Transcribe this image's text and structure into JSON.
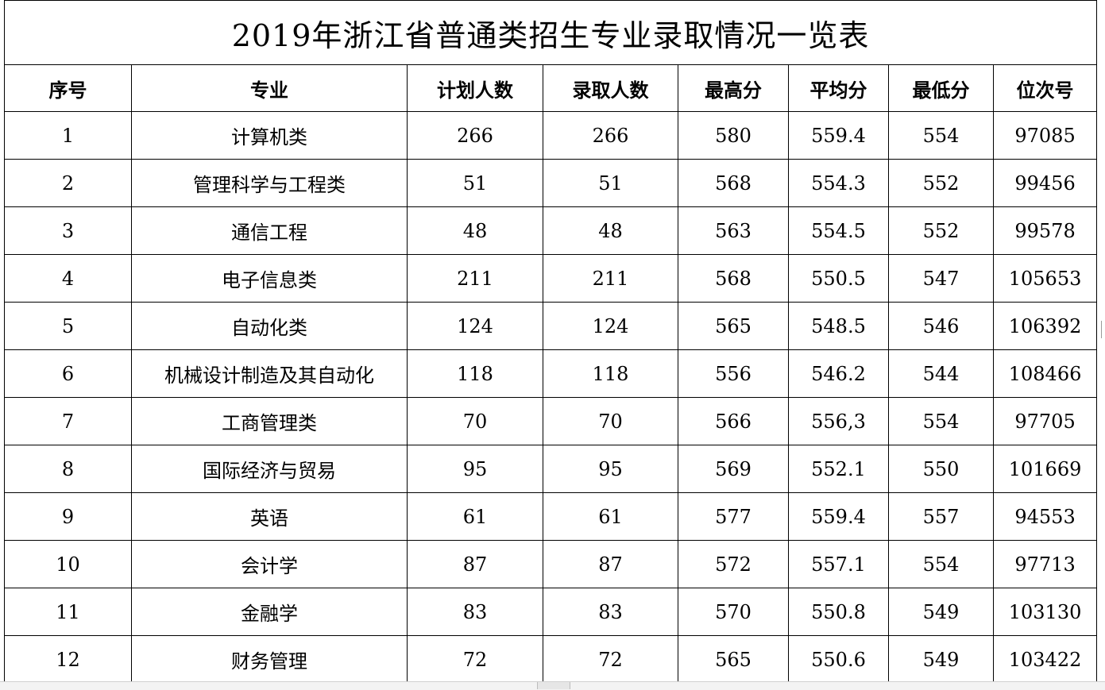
{
  "title": "2019年浙江省普通类招生专业录取情况一览表",
  "columns": [
    "序号",
    "专业",
    "计划人数",
    "录取人数",
    "最高分",
    "平均分",
    "最低分",
    "位次号"
  ],
  "rows": [
    [
      "1",
      "计算机类",
      "266",
      "266",
      "580",
      "559.4",
      "554",
      "97085"
    ],
    [
      "2",
      "管理科学与工程类",
      "51",
      "51",
      "568",
      "554.3",
      "552",
      "99456"
    ],
    [
      "3",
      "通信工程",
      "48",
      "48",
      "563",
      "554.5",
      "552",
      "99578"
    ],
    [
      "4",
      "电子信息类",
      "211",
      "211",
      "568",
      "550.5",
      "547",
      "105653"
    ],
    [
      "5",
      "自动化类",
      "124",
      "124",
      "565",
      "548.5",
      "546",
      "106392"
    ],
    [
      "6",
      "机械设计制造及其自动化",
      "118",
      "118",
      "556",
      "546.2",
      "544",
      "108466"
    ],
    [
      "7",
      "工商管理类",
      "70",
      "70",
      "566",
      "556,3",
      "554",
      "97705"
    ],
    [
      "8",
      "国际经济与贸易",
      "95",
      "95",
      "569",
      "552.1",
      "550",
      "101669"
    ],
    [
      "9",
      "英语",
      "61",
      "61",
      "577",
      "559.4",
      "557",
      "94553"
    ],
    [
      "10",
      "会计学",
      "87",
      "87",
      "572",
      "557.1",
      "554",
      "97713"
    ],
    [
      "11",
      "金融学",
      "83",
      "83",
      "570",
      "550.8",
      "549",
      "103130"
    ],
    [
      "12",
      "财务管理",
      "72",
      "72",
      "565",
      "550.6",
      "549",
      "103422"
    ]
  ]
}
